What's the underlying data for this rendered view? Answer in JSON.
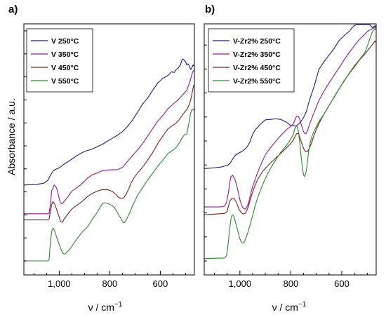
{
  "chart_data": [
    {
      "type": "line",
      "panel_label": "a)",
      "xlabel": "ν / cm",
      "xlabel_sup": "−1",
      "ylabel": "Absorbance / a.u.",
      "xlim": [
        1140,
        465
      ],
      "x_reversed": true,
      "ylim": [
        0,
        10
      ],
      "y_tick_labels": false,
      "x_ticks": [
        {
          "value": 1000,
          "label": "1,000"
        },
        {
          "value": 800,
          "label": "800"
        },
        {
          "value": 600,
          "label": "600"
        }
      ],
      "legend_position": "top-left",
      "series": [
        {
          "name": "V 250°C",
          "color": "#1b1b8a",
          "x": [
            1140,
            1090,
            1060,
            1045,
            1035,
            1025,
            1015,
            1005,
            995,
            990,
            985,
            975,
            965,
            950,
            930,
            900,
            870,
            850,
            830,
            810,
            790,
            770,
            750,
            730,
            710,
            690,
            670,
            650,
            630,
            610,
            590,
            570,
            555,
            545,
            540,
            530,
            520,
            515,
            510,
            505,
            500,
            495,
            490,
            485,
            480,
            475,
            470,
            465
          ],
          "y": [
            3.3,
            3.32,
            3.38,
            3.5,
            3.72,
            3.9,
            3.98,
            4.02,
            4.08,
            4.13,
            4.18,
            4.24,
            4.32,
            4.42,
            4.58,
            4.76,
            4.86,
            4.96,
            5.06,
            5.2,
            5.33,
            5.46,
            5.62,
            5.84,
            6.12,
            6.46,
            6.82,
            7.08,
            7.42,
            7.73,
            7.94,
            8.06,
            8.22,
            8.19,
            8.28,
            8.38,
            8.52,
            8.72,
            8.78,
            8.72,
            8.66,
            8.52,
            8.57,
            8.48,
            8.32,
            8.4,
            8.52,
            8.46
          ]
        },
        {
          "name": "V 350°C",
          "color": "#8b1c8b",
          "x": [
            1140,
            1050,
            1040,
            1035,
            1030,
            1020,
            1012,
            1005,
            1000,
            995,
            990,
            985,
            980,
            970,
            960,
            950,
            930,
            910,
            890,
            870,
            850,
            830,
            810,
            790,
            770,
            750,
            730,
            710,
            690,
            670,
            650,
            630,
            610,
            590,
            570,
            555,
            545,
            535,
            525,
            515,
            505,
            495,
            485,
            478,
            472,
            468,
            465
          ],
          "y": [
            2.05,
            2.05,
            2.07,
            2.45,
            3.05,
            3.3,
            3.2,
            2.95,
            2.7,
            2.52,
            2.48,
            2.52,
            2.6,
            2.72,
            2.88,
            3.03,
            3.18,
            3.36,
            3.58,
            3.74,
            3.82,
            3.92,
            3.95,
            3.96,
            3.96,
            4.06,
            4.32,
            4.58,
            4.82,
            5.1,
            5.42,
            5.76,
            6.08,
            6.32,
            6.62,
            6.76,
            6.86,
            6.95,
            7.05,
            7.18,
            7.3,
            7.42,
            7.72,
            7.98,
            8.22,
            8.28,
            8.25
          ]
        },
        {
          "name": "V 450°C",
          "color": "#7b2218",
          "x": [
            1140,
            1045,
            1040,
            1035,
            1030,
            1025,
            1018,
            1010,
            1000,
            995,
            990,
            985,
            980,
            970,
            960,
            950,
            930,
            910,
            890,
            870,
            850,
            830,
            810,
            790,
            775,
            765,
            755,
            745,
            735,
            725,
            715,
            705,
            690,
            670,
            650,
            630,
            610,
            590,
            570,
            555,
            545,
            535,
            525,
            515,
            505,
            495,
            485,
            478,
            472,
            468,
            465
          ],
          "y": [
            1.78,
            1.78,
            1.82,
            2.15,
            2.45,
            2.58,
            2.48,
            2.22,
            1.9,
            1.72,
            1.68,
            1.73,
            1.83,
            1.98,
            2.12,
            2.26,
            2.42,
            2.58,
            2.78,
            2.93,
            3.03,
            3.1,
            3.1,
            3.02,
            2.88,
            2.76,
            2.72,
            2.74,
            2.9,
            3.13,
            3.4,
            3.6,
            3.82,
            4.08,
            4.38,
            4.72,
            5.1,
            5.43,
            5.73,
            5.86,
            5.93,
            6.02,
            6.15,
            6.3,
            6.45,
            6.58,
            6.8,
            7.08,
            7.42,
            7.63,
            7.64
          ]
        },
        {
          "name": "V 550°C",
          "color": "#2d8a2d",
          "x": [
            1140,
            1045,
            1040,
            1037,
            1032,
            1028,
            1024,
            1018,
            1010,
            1000,
            992,
            985,
            978,
            970,
            960,
            950,
            940,
            930,
            920,
            910,
            900,
            890,
            880,
            870,
            860,
            850,
            840,
            830,
            820,
            810,
            800,
            790,
            780,
            770,
            760,
            750,
            745,
            740,
            730,
            720,
            710,
            700,
            690,
            670,
            650,
            630,
            610,
            590,
            570,
            555,
            545,
            535,
            525,
            515,
            505,
            495,
            485,
            480,
            475,
            470,
            465
          ],
          "y": [
            0.0,
            0.0,
            0.05,
            0.55,
            1.1,
            1.36,
            1.43,
            1.3,
            1.02,
            0.72,
            0.47,
            0.33,
            0.3,
            0.36,
            0.48,
            0.64,
            0.8,
            0.96,
            1.1,
            1.24,
            1.35,
            1.45,
            1.62,
            1.8,
            1.95,
            2.1,
            2.3,
            2.48,
            2.53,
            2.5,
            2.46,
            2.4,
            2.3,
            2.1,
            1.92,
            1.72,
            1.65,
            1.68,
            1.88,
            2.12,
            2.4,
            2.62,
            2.86,
            3.18,
            3.52,
            3.82,
            4.12,
            4.38,
            4.66,
            4.78,
            4.85,
            4.96,
            5.12,
            5.32,
            5.48,
            5.52,
            6.1,
            6.42,
            6.58,
            6.6,
            6.52
          ]
        }
      ]
    },
    {
      "type": "line",
      "panel_label": "b)",
      "xlabel": "ν / cm",
      "xlabel_sup": "−1",
      "xlim": [
        1140,
        465
      ],
      "x_reversed": true,
      "ylim": [
        0,
        10
      ],
      "y_tick_labels": false,
      "x_ticks": [
        {
          "value": 1000,
          "label": "1,000"
        },
        {
          "value": 800,
          "label": "800"
        },
        {
          "value": 600,
          "label": "600"
        }
      ],
      "legend_position": "top-left",
      "series": [
        {
          "name": "V-Zr2% 250°C",
          "color": "#1b1b8a",
          "x": [
            1140,
            1100,
            1070,
            1050,
            1040,
            1030,
            1020,
            1010,
            1000,
            990,
            980,
            970,
            960,
            950,
            940,
            920,
            900,
            880,
            860,
            840,
            820,
            800,
            780,
            770,
            760,
            750,
            740,
            730,
            720,
            710,
            700,
            690,
            670,
            650,
            630,
            610,
            590,
            570,
            560,
            550,
            540,
            530,
            520,
            510,
            505,
            500,
            490,
            480,
            470,
            465
          ],
          "y": [
            3.85,
            3.88,
            3.92,
            3.98,
            4.05,
            4.22,
            4.38,
            4.46,
            4.52,
            4.58,
            4.66,
            4.78,
            4.98,
            5.28,
            5.46,
            5.7,
            5.88,
            5.9,
            5.92,
            5.9,
            5.8,
            5.64,
            5.62,
            5.7,
            5.82,
            5.98,
            6.2,
            6.58,
            6.92,
            7.22,
            7.6,
            7.98,
            8.3,
            8.58,
            8.86,
            9.2,
            9.4,
            9.58,
            9.72,
            9.82,
            9.9,
            9.95,
            9.98,
            10.02,
            10.06,
            10.02,
            9.96,
            9.72,
            9.8,
            9.76
          ]
        },
        {
          "name": "V-Zr2% 350°C",
          "color": "#8b1c8b",
          "x": [
            1140,
            1080,
            1060,
            1052,
            1045,
            1040,
            1035,
            1028,
            1020,
            1012,
            1005,
            1000,
            995,
            990,
            985,
            980,
            975,
            970,
            965,
            960,
            955,
            950,
            940,
            930,
            920,
            910,
            900,
            880,
            860,
            840,
            820,
            800,
            790,
            785,
            780,
            775,
            770,
            765,
            760,
            755,
            750,
            745,
            740,
            735,
            730,
            720,
            710,
            700,
            690,
            670,
            650,
            630,
            610,
            590,
            570,
            550,
            530,
            510,
            495,
            480,
            470,
            465
          ],
          "y": [
            2.25,
            2.25,
            2.28,
            2.45,
            2.85,
            3.25,
            3.52,
            3.56,
            3.4,
            3.12,
            2.8,
            2.55,
            2.38,
            2.25,
            2.18,
            2.16,
            2.2,
            2.3,
            2.46,
            2.68,
            2.9,
            3.1,
            3.4,
            3.7,
            3.96,
            4.2,
            4.42,
            4.72,
            4.98,
            5.22,
            5.44,
            5.62,
            5.72,
            5.86,
            5.98,
            6.04,
            6.02,
            5.9,
            5.72,
            5.55,
            5.38,
            5.3,
            5.32,
            5.42,
            5.58,
            5.88,
            6.16,
            6.42,
            6.68,
            7.08,
            7.42,
            7.74,
            8.06,
            8.4,
            8.7,
            8.98,
            9.24,
            9.45,
            9.6,
            9.68,
            9.74,
            9.7
          ]
        },
        {
          "name": "V-Zr2% 450°C",
          "color": "#7b2218",
          "x": [
            1140,
            1060,
            1050,
            1045,
            1038,
            1030,
            1022,
            1012,
            1004,
            996,
            990,
            984,
            978,
            972,
            966,
            960,
            950,
            940,
            930,
            920,
            910,
            900,
            880,
            860,
            840,
            820,
            800,
            790,
            782,
            776,
            770,
            765,
            758,
            750,
            742,
            735,
            728,
            720,
            710,
            700,
            690,
            670,
            650,
            630,
            610,
            590,
            570,
            550,
            530,
            510,
            495,
            480,
            470,
            465
          ],
          "y": [
            1.92,
            1.98,
            2.06,
            2.28,
            2.52,
            2.62,
            2.6,
            2.4,
            2.16,
            2.03,
            1.97,
            1.96,
            2.0,
            2.12,
            2.3,
            2.52,
            2.88,
            3.16,
            3.4,
            3.58,
            3.74,
            3.86,
            4.08,
            4.28,
            4.48,
            4.68,
            4.9,
            5.04,
            5.22,
            5.32,
            5.3,
            5.16,
            4.92,
            4.68,
            4.55,
            4.56,
            4.68,
            4.88,
            5.2,
            5.48,
            5.72,
            6.12,
            6.48,
            6.82,
            7.18,
            7.52,
            7.82,
            8.1,
            8.38,
            8.62,
            8.82,
            9.02,
            9.16,
            9.1
          ]
        },
        {
          "name": "V-Zr2% 550°C",
          "color": "#2d8a2d",
          "x": [
            1140,
            1060,
            1052,
            1046,
            1040,
            1035,
            1030,
            1025,
            1020,
            1012,
            1005,
            1000,
            995,
            990,
            985,
            980,
            970,
            960,
            950,
            940,
            930,
            920,
            910,
            900,
            880,
            860,
            840,
            820,
            800,
            790,
            785,
            780,
            776,
            770,
            766,
            762,
            758,
            754,
            750,
            746,
            742,
            738,
            734,
            730,
            725,
            720,
            710,
            700,
            690,
            670,
            650,
            630,
            610,
            590,
            570,
            550,
            530,
            510,
            495,
            480,
            470,
            465
          ],
          "y": [
            0.1,
            0.12,
            0.22,
            0.7,
            1.35,
            1.75,
            1.92,
            1.9,
            1.72,
            1.4,
            1.12,
            0.92,
            0.8,
            0.74,
            0.76,
            0.86,
            1.14,
            1.5,
            1.9,
            2.3,
            2.64,
            2.92,
            3.2,
            3.44,
            3.86,
            4.2,
            4.52,
            4.78,
            5.08,
            5.28,
            5.5,
            5.62,
            5.62,
            5.4,
            5.02,
            4.6,
            4.18,
            3.82,
            3.58,
            3.52,
            3.62,
            3.86,
            4.22,
            4.58,
            4.88,
            5.1,
            5.38,
            5.6,
            5.8,
            6.12,
            6.48,
            6.84,
            7.18,
            7.5,
            7.84,
            8.14,
            8.4,
            8.68,
            9.1,
            9.56,
            9.68,
            9.62
          ]
        }
      ]
    }
  ]
}
